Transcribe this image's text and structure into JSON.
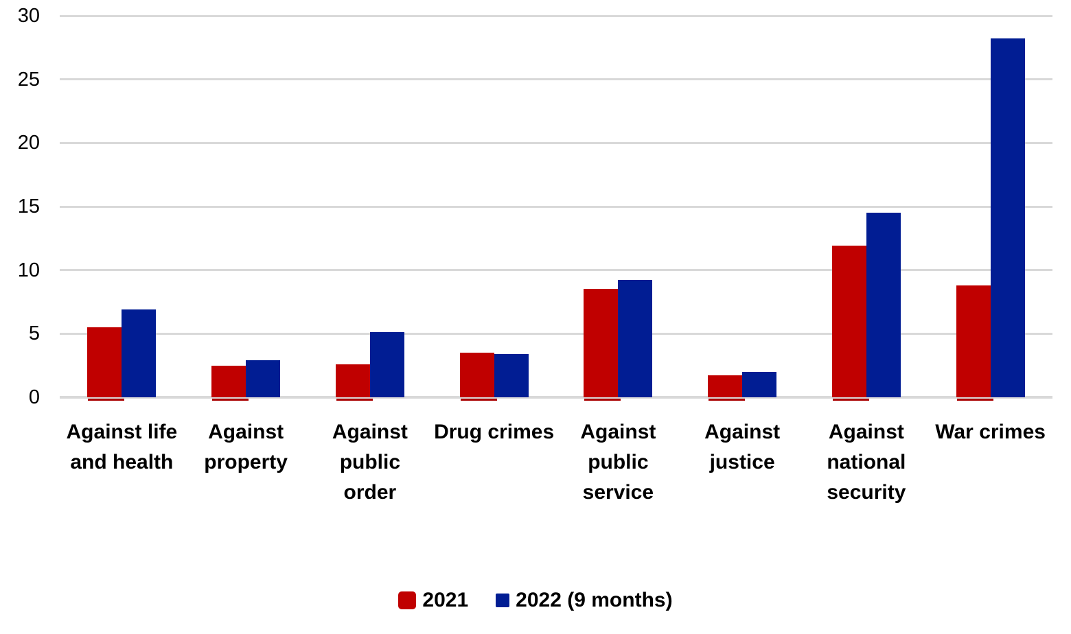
{
  "chart_data": {
    "type": "bar",
    "title": "",
    "xlabel": "",
    "ylabel": "",
    "categories": [
      "Against life and health",
      "Against property",
      "Against public order",
      "Drug crimes",
      "Against public service",
      "Against justice",
      "Against national security",
      "War crimes"
    ],
    "category_lines": [
      [
        "Against life",
        "and health"
      ],
      [
        "Against",
        "property"
      ],
      [
        "Against",
        "public",
        "order"
      ],
      [
        "Drug crimes"
      ],
      [
        "Against",
        "public",
        "service"
      ],
      [
        "Against",
        "justice"
      ],
      [
        "Against",
        "national",
        "security"
      ],
      [
        "War crimes"
      ]
    ],
    "series": [
      {
        "name": "2021",
        "color": "#C00000",
        "underline_color": "#AA0000",
        "values": [
          5.5,
          2.5,
          2.6,
          3.5,
          8.5,
          1.7,
          11.9,
          8.8
        ]
      },
      {
        "name": "2022 (9 months)",
        "color": "#011D93",
        "values": [
          6.9,
          2.9,
          5.1,
          3.4,
          9.2,
          2.0,
          14.5,
          28.2
        ]
      }
    ],
    "yticks": [
      0,
      5,
      10,
      15,
      20,
      25,
      30
    ],
    "ylim": [
      0,
      30
    ],
    "grid": true,
    "gridline_color": "#D9D9D9",
    "axis_text_color": "#000000",
    "background_color": "#FFFFFF",
    "legend_position": "bottom"
  }
}
